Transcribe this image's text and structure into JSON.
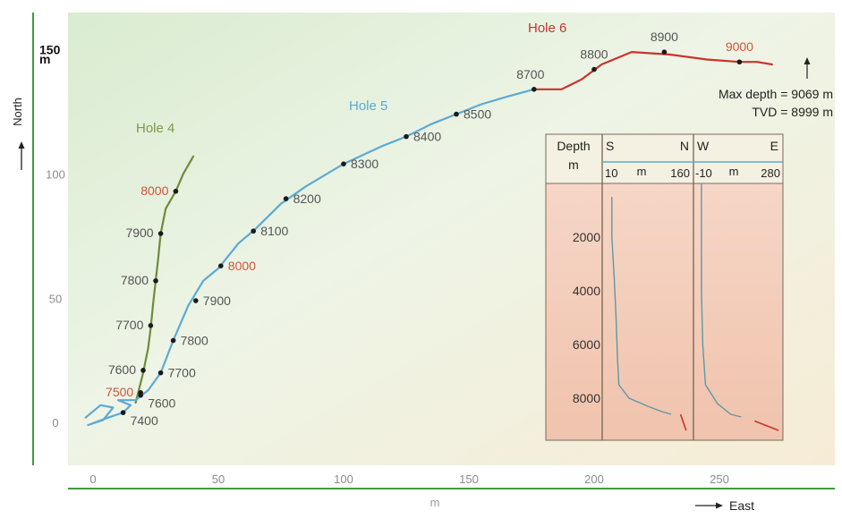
{
  "chart_data": {
    "type": "line",
    "xlabel": "m",
    "east_label": "East",
    "ylabel": "North",
    "y_unit": "m",
    "x_ticks": [
      "0",
      "50",
      "100",
      "150",
      "200",
      "250"
    ],
    "y_ticks": [
      "0",
      "50",
      "100",
      "150"
    ],
    "xlim": [
      -5,
      285
    ],
    "ylim": [
      -10,
      162
    ],
    "series": [
      {
        "name": "Hole 4",
        "color": "#6f8a3a",
        "points": [
          [
            17,
            8
          ],
          [
            20,
            20
          ],
          [
            22,
            30
          ],
          [
            23,
            38
          ],
          [
            24,
            48
          ],
          [
            25,
            57
          ],
          [
            26,
            66
          ],
          [
            27,
            76
          ],
          [
            29,
            86
          ],
          [
            33,
            93
          ],
          [
            36,
            100
          ],
          [
            40,
            107
          ]
        ],
        "markers": [
          {
            "label": "7500",
            "x": 19,
            "y": 12,
            "color": "#d2553a"
          },
          {
            "label": "7600",
            "x": 20,
            "y": 21,
            "color": "#555555"
          },
          {
            "label": "7700",
            "x": 23,
            "y": 39,
            "color": "#555555"
          },
          {
            "label": "7800",
            "x": 25,
            "y": 57,
            "color": "#555555"
          },
          {
            "label": "7900",
            "x": 27,
            "y": 76,
            "color": "#555555"
          },
          {
            "label": "8000",
            "x": 33,
            "y": 93,
            "color": "#d2553a"
          }
        ]
      },
      {
        "name": "Hole 5",
        "color": "#5aaad6",
        "points": [
          [
            -3,
            2
          ],
          [
            3,
            7
          ],
          [
            8,
            6
          ],
          [
            4,
            1
          ],
          [
            -2,
            -1
          ],
          [
            6,
            2
          ],
          [
            12,
            4
          ],
          [
            15,
            7
          ],
          [
            10,
            9
          ],
          [
            17,
            9
          ],
          [
            22,
            13
          ],
          [
            27,
            20
          ],
          [
            32,
            33
          ],
          [
            38,
            47
          ],
          [
            44,
            57
          ],
          [
            50,
            62
          ],
          [
            58,
            72
          ],
          [
            65,
            78
          ],
          [
            75,
            88
          ],
          [
            85,
            95
          ],
          [
            100,
            104
          ],
          [
            115,
            111
          ],
          [
            125,
            115
          ],
          [
            135,
            120
          ],
          [
            145,
            124
          ],
          [
            155,
            128
          ],
          [
            165,
            131
          ],
          [
            176,
            134
          ]
        ],
        "markers": [
          {
            "label": "7400",
            "x": 12,
            "y": 4,
            "color": "#555555"
          },
          {
            "label": "7600",
            "x": 19,
            "y": 11,
            "color": "#555555"
          },
          {
            "label": "7700",
            "x": 27,
            "y": 20,
            "color": "#555555"
          },
          {
            "label": "7800",
            "x": 32,
            "y": 33,
            "color": "#555555"
          },
          {
            "label": "7900",
            "x": 41,
            "y": 49,
            "color": "#555555"
          },
          {
            "label": "8000",
            "x": 51,
            "y": 63,
            "color": "#d2553a"
          },
          {
            "label": "8100",
            "x": 64,
            "y": 77,
            "color": "#555555"
          },
          {
            "label": "8200",
            "x": 77,
            "y": 90,
            "color": "#555555"
          },
          {
            "label": "8300",
            "x": 100,
            "y": 104,
            "color": "#555555"
          },
          {
            "label": "8400",
            "x": 125,
            "y": 115,
            "color": "#555555"
          },
          {
            "label": "8500",
            "x": 145,
            "y": 124,
            "color": "#555555"
          },
          {
            "label": "8700",
            "x": 176,
            "y": 134,
            "color": "#555555"
          }
        ]
      },
      {
        "name": "Hole 6",
        "color": "#c8342c",
        "points": [
          [
            176,
            134
          ],
          [
            187,
            134
          ],
          [
            195,
            138
          ],
          [
            203,
            144
          ],
          [
            215,
            149
          ],
          [
            230,
            148
          ],
          [
            245,
            146
          ],
          [
            258,
            145
          ],
          [
            265,
            145
          ],
          [
            271,
            144
          ]
        ],
        "markers": [
          {
            "label": "8800",
            "x": 200,
            "y": 142,
            "color": "#555555"
          },
          {
            "label": "8900",
            "x": 228,
            "y": 149,
            "color": "#555555"
          },
          {
            "label": "9000",
            "x": 258,
            "y": 145,
            "color": "#d2553a"
          }
        ]
      }
    ],
    "annotations": [
      "Max depth = 9069 m",
      "TVD = 8999 m"
    ],
    "inset": {
      "depth_header": [
        "Depth",
        "m"
      ],
      "depth_ticks": [
        "2000",
        "4000",
        "6000",
        "8000"
      ],
      "depth_lim": [
        0,
        9500
      ],
      "panel_ns": {
        "left_label": "S",
        "right_label": "N",
        "unit": "m",
        "ticks": [
          "10",
          "160"
        ],
        "xlim": [
          -10,
          170
        ]
      },
      "panel_we": {
        "left_label": "W",
        "right_label": "E",
        "unit": "m",
        "ticks": [
          "-10",
          "280"
        ],
        "xlim": [
          -20,
          300
        ]
      },
      "ns_curve": [
        [
          3,
          500
        ],
        [
          3,
          2000
        ],
        [
          8,
          3500
        ],
        [
          12,
          5000
        ],
        [
          15,
          6500
        ],
        [
          18,
          7500
        ],
        [
          40,
          8000
        ],
        [
          80,
          8300
        ],
        [
          110,
          8500
        ],
        [
          130,
          8600
        ]
      ],
      "we_curve": [
        [
          0,
          0
        ],
        [
          0,
          2000
        ],
        [
          0,
          4000
        ],
        [
          5,
          6000
        ],
        [
          15,
          7500
        ],
        [
          60,
          8200
        ],
        [
          110,
          8600
        ],
        [
          150,
          8700
        ]
      ]
    }
  }
}
